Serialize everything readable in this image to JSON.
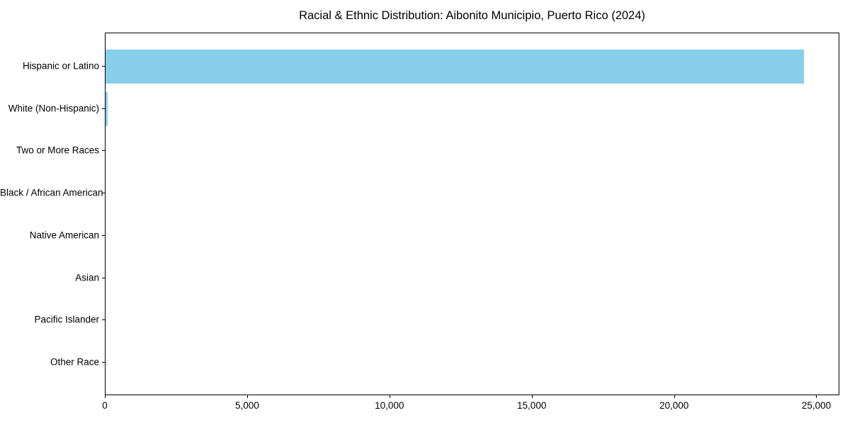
{
  "title": "Racial & Ethnic Distribution: Aibonito Municipio, Puerto Rico (2024)",
  "chart_data": {
    "type": "bar",
    "orientation": "horizontal",
    "title": "Racial & Ethnic Distribution: Aibonito Municipio, Puerto Rico (2024)",
    "xlabel": "",
    "ylabel": "",
    "categories": [
      "Hispanic or Latino",
      "White (Non-Hispanic)",
      "Two or More Races",
      "Black / African American",
      "Native American",
      "Asian",
      "Pacific Islander",
      "Other Race"
    ],
    "values": [
      24580,
      85,
      0,
      0,
      0,
      0,
      0,
      0
    ],
    "xlim": [
      0,
      25809
    ],
    "xticks": [
      0,
      5000,
      10000,
      15000,
      20000,
      25000
    ],
    "xtick_labels": [
      "0",
      "5,000",
      "10,000",
      "15,000",
      "20,000",
      "25,000"
    ],
    "bar_color": "#87CEEB",
    "axis_color": "#000000",
    "grid": false,
    "legend": null
  }
}
